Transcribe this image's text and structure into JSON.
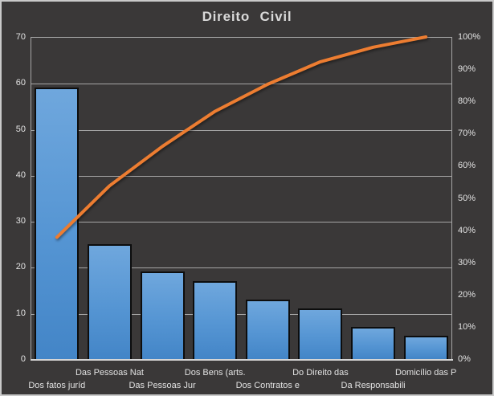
{
  "chart": {
    "title": "Direito Civil"
  },
  "chart_data": {
    "type": "bar",
    "subtype": "pareto",
    "title": "Direito Civil",
    "categories": [
      "Dos fatos juríd",
      "Das Pessoas Nat",
      "Das Pessoas Jur",
      "Dos Bens (arts.",
      "Dos Contratos e",
      "Do Direito das",
      "Da Responsabili",
      "Domicílio das P"
    ],
    "series": [
      {
        "name": "frequency-bars",
        "type": "bar",
        "axis": "left",
        "values": [
          59,
          25,
          19,
          17,
          13,
          11,
          7,
          5
        ]
      },
      {
        "name": "cumulative-line",
        "type": "line",
        "axis": "right",
        "values_percent": [
          37.8,
          53.8,
          66.0,
          76.9,
          85.3,
          92.3,
          96.8,
          100.0
        ]
      }
    ],
    "left_axis": {
      "min": 0,
      "max": 70,
      "ticks": [
        "0",
        "10",
        "20",
        "30",
        "40",
        "50",
        "60",
        "70"
      ]
    },
    "right_axis": {
      "min": 0,
      "max": 100,
      "ticks": [
        "0%",
        "10%",
        "20%",
        "30%",
        "40%",
        "50%",
        "60%",
        "70%",
        "80%",
        "90%",
        "100%"
      ]
    },
    "grid": true,
    "legend": "none",
    "layout": {
      "category_rows": "staggered"
    },
    "colors": {
      "background": "#3A3838",
      "chart_border": "#C9C9C9",
      "bar_gradient_top": "#6FA7DD",
      "bar_gradient_mid": "#5595D3",
      "bar_gradient_bottom": "#4385C7",
      "bar_border": "#0D0D0D",
      "line": "#ED7D31",
      "gridline": "#A6A6A6",
      "axis_line": "#D6D6D6",
      "text": "#E2E2E2",
      "title_text": "#D9D9D9"
    }
  }
}
